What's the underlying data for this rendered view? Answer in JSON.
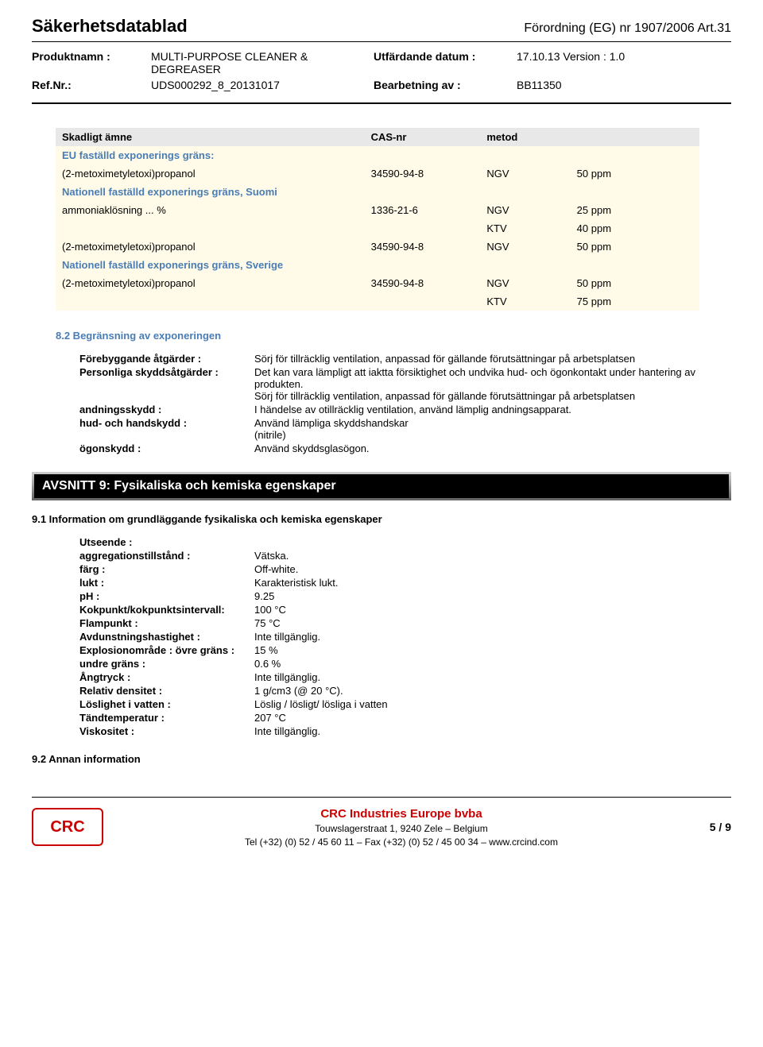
{
  "header": {
    "doc_title": "Säkerhetsdatablad",
    "regulation": "Förordning (EG) nr 1907/2006 Art.31",
    "product_label": "Produktnamn :",
    "product_value": "MULTI-PURPOSE CLEANER & DEGREASER",
    "ref_label": "Ref.Nr.:",
    "ref_value": "UDS000292_8_20131017",
    "issue_label": "Utfärdande datum :",
    "issue_value": "17.10.13 Version : 1.0",
    "prep_label": "Bearbetning av :",
    "prep_value": "BB11350"
  },
  "table": {
    "h1": "Skadligt ämne",
    "h2": "CAS-nr",
    "h3": "metod",
    "eu_section": "EU faställd exponerings gräns:",
    "suomi_section": "Nationell faställd exponerings gräns, Suomi",
    "sverige_section": "Nationell faställd exponerings gräns, Sverige",
    "rows": [
      {
        "name": "(2-metoximetyletoxi)propanol",
        "cas": "34590-94-8",
        "method": "NGV",
        "val": "50 ppm"
      },
      {
        "name": "ammoniaklösning ... %",
        "cas": "1336-21-6",
        "method": "NGV",
        "val": "25 ppm"
      },
      {
        "name": "",
        "cas": "",
        "method": "KTV",
        "val": "40 ppm"
      },
      {
        "name": "(2-metoximetyletoxi)propanol",
        "cas": "34590-94-8",
        "method": "NGV",
        "val": "50 ppm"
      },
      {
        "name": "(2-metoximetyletoxi)propanol",
        "cas": "34590-94-8",
        "method": "NGV",
        "val": "50 ppm"
      },
      {
        "name": "",
        "cas": "",
        "method": "KTV",
        "val": "75 ppm"
      }
    ]
  },
  "s82": {
    "title": "8.2 Begränsning av exponeringen",
    "preventive_l": "Förebyggande åtgärder :",
    "preventive_v": "Sörj för tillräcklig ventilation, anpassad för gällande förutsättningar på arbetsplatsen",
    "personal_l": "Personliga skyddsåtgärder :",
    "personal_v1": "Det kan vara lämpligt att iaktta försiktighet och undvika hud- och ögonkontakt under hantering av produkten.",
    "personal_v2": "Sörj för tillräcklig ventilation, anpassad för gällande förutsättningar på arbetsplatsen",
    "resp_l": "andningsskydd :",
    "resp_v": "I händelse av otillräcklig ventilation, använd lämplig andningsapparat.",
    "skin_l": "hud- och handskydd :",
    "skin_v1": "Använd lämpliga skyddshandskar",
    "skin_v2": "(nitrile)",
    "eye_l": "ögonskydd :",
    "eye_v": "Använd skyddsglasögon."
  },
  "s9_banner": "AVSNITT 9: Fysikaliska och kemiska egenskaper",
  "s91": {
    "title": "9.1 Information om grundläggande fysikaliska och kemiska egenskaper",
    "appearance_l": "Utseende :",
    "agg_l": "aggregationstillstånd :",
    "agg_v": "Vätska.",
    "color_l": "färg :",
    "color_v": "Off-white.",
    "odor_l": "lukt :",
    "odor_v": "Karakteristisk lukt.",
    "ph_l": "pH :",
    "ph_v": "9.25",
    "boil_l": "Kokpunkt/kokpunktsintervall:",
    "boil_v": "100 °C",
    "flash_l": "Flampunkt :",
    "flash_v": "75 °C",
    "evap_l": "Avdunstningshastighet :",
    "evap_v": "Inte tillgänglig.",
    "expl_u_l": "Explosionområde : övre gräns :",
    "expl_u_v": "15 %",
    "expl_l_l": "undre gräns :",
    "expl_l_v": "0.6 %",
    "vapp_l": "Ångtryck :",
    "vapp_v": "Inte tillgänglig.",
    "dens_l": "Relativ densitet :",
    "dens_v": "1 g/cm3 (@ 20 °C).",
    "sol_l": "Löslighet i vatten :",
    "sol_v": "Löslig / lösligt/ lösliga i vatten",
    "ign_l": "Tändtemperatur :",
    "ign_v": "207 °C",
    "visc_l": "Viskositet :",
    "visc_v": "Inte tillgänglig."
  },
  "s92_title": "9.2 Annan information",
  "footer": {
    "logo": "CRC",
    "company": "CRC Industries Europe bvba",
    "addr": "Touwslagerstraat 1, 9240 Zele – Belgium",
    "tel": "Tel (+32) (0) 52 / 45 60 11 – Fax (+32) (0) 52 / 45 00 34 – www.crcind.com",
    "page": "5 / 9"
  }
}
